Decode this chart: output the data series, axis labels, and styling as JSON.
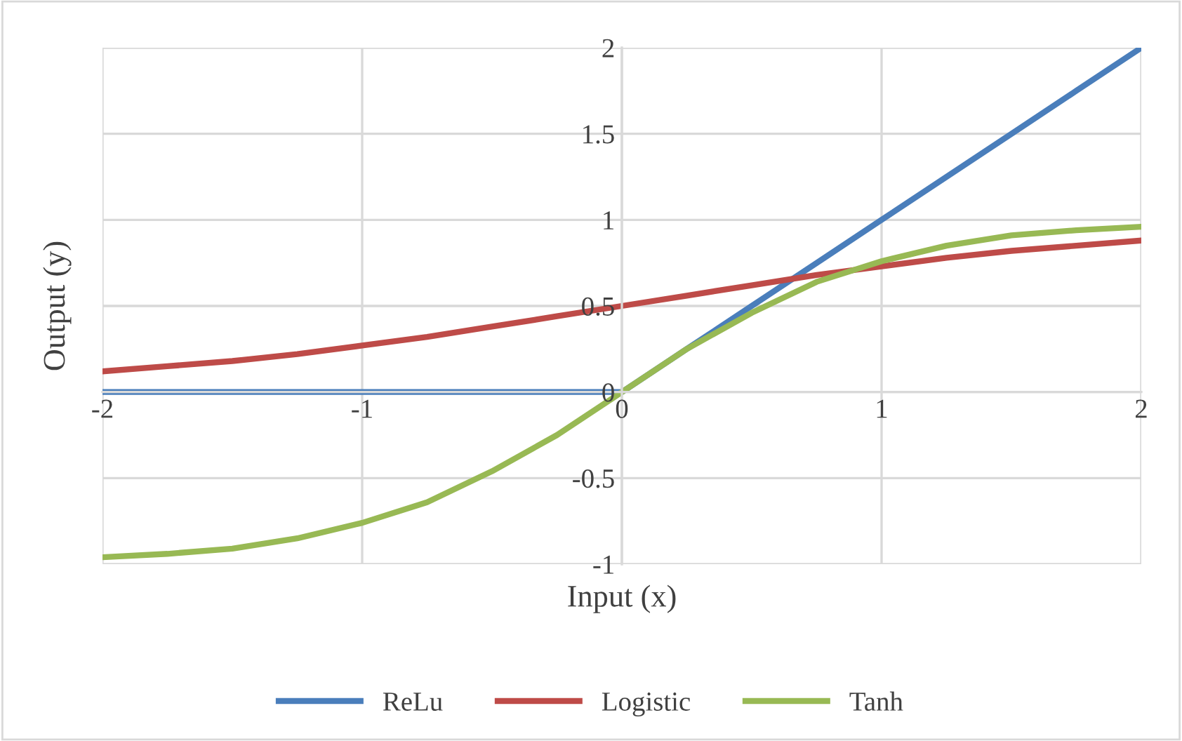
{
  "chart_data": {
    "type": "line",
    "xlabel": "Input (x)",
    "ylabel": "Output (y)",
    "x": [
      -2,
      -1.75,
      -1.5,
      -1.25,
      -1,
      -0.75,
      -0.5,
      -0.25,
      0,
      0.25,
      0.5,
      0.75,
      1,
      1.25,
      1.5,
      1.75,
      2
    ],
    "series": [
      {
        "name": "ReLu",
        "color": "#4a7ebb",
        "values": [
          0,
          0,
          0,
          0,
          0,
          0,
          0,
          0,
          0,
          0.25,
          0.5,
          0.75,
          1,
          1.25,
          1.5,
          1.75,
          2
        ]
      },
      {
        "name": "Logistic",
        "color": "#be4b48",
        "values": [
          0.12,
          0.15,
          0.18,
          0.22,
          0.27,
          0.32,
          0.38,
          0.44,
          0.5,
          0.56,
          0.62,
          0.68,
          0.73,
          0.78,
          0.82,
          0.85,
          0.88
        ]
      },
      {
        "name": "Tanh",
        "color": "#98b954",
        "values": [
          -0.96,
          -0.94,
          -0.91,
          -0.85,
          -0.76,
          -0.64,
          -0.46,
          -0.25,
          0,
          0.25,
          0.46,
          0.64,
          0.76,
          0.85,
          0.91,
          0.94,
          0.96
        ]
      }
    ],
    "xlim": [
      -2,
      2
    ],
    "xticks": [
      -2,
      -1,
      0,
      1,
      2
    ],
    "ylim": [
      -1,
      2
    ],
    "yticks": [
      -1,
      -0.5,
      0,
      0.5,
      1,
      1.5,
      2
    ],
    "grid": true,
    "legend": "bottom",
    "marker": "none",
    "line_style": "solid"
  }
}
